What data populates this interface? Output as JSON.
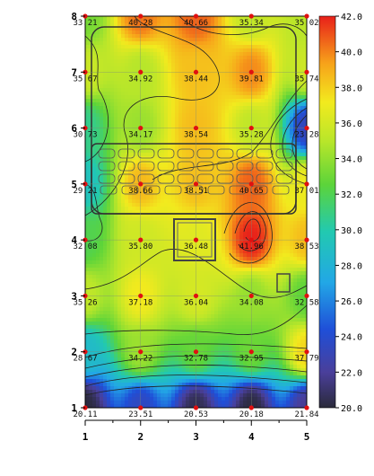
{
  "chart_data": {
    "type": "heatmap",
    "x_ticks": [
      "1",
      "2",
      "3",
      "4",
      "5"
    ],
    "y_ticks": [
      "1",
      "2",
      "3",
      "4",
      "5",
      "6",
      "7",
      "8"
    ],
    "xlim": [
      1,
      5
    ],
    "ylim": [
      1,
      8
    ],
    "colorbar": {
      "min": 20.0,
      "max": 42.0,
      "ticks": [
        "42.0",
        "40.0",
        "38.0",
        "36.0",
        "34.0",
        "32.0",
        "30.0",
        "28.0",
        "26.0",
        "24.0",
        "22.0",
        "20.0"
      ]
    },
    "points": [
      {
        "x": 1,
        "y": 8,
        "value": "33.21"
      },
      {
        "x": 2,
        "y": 8,
        "value": "40.28"
      },
      {
        "x": 3,
        "y": 8,
        "value": "40.66"
      },
      {
        "x": 4,
        "y": 8,
        "value": "35.34"
      },
      {
        "x": 5,
        "y": 8,
        "value": "35.02"
      },
      {
        "x": 1,
        "y": 7,
        "value": "35.67"
      },
      {
        "x": 2,
        "y": 7,
        "value": "34.92"
      },
      {
        "x": 3,
        "y": 7,
        "value": "38.44"
      },
      {
        "x": 4,
        "y": 7,
        "value": "39.81"
      },
      {
        "x": 5,
        "y": 7,
        "value": "35.74"
      },
      {
        "x": 1,
        "y": 6,
        "value": "30.73"
      },
      {
        "x": 2,
        "y": 6,
        "value": "34.17"
      },
      {
        "x": 3,
        "y": 6,
        "value": "38.54"
      },
      {
        "x": 4,
        "y": 6,
        "value": "35.28"
      },
      {
        "x": 5,
        "y": 6,
        "value": "23.28"
      },
      {
        "x": 1,
        "y": 5,
        "value": "29.21"
      },
      {
        "x": 2,
        "y": 5,
        "value": "38.66"
      },
      {
        "x": 3,
        "y": 5,
        "value": "38.51"
      },
      {
        "x": 4,
        "y": 5,
        "value": "40.65"
      },
      {
        "x": 5,
        "y": 5,
        "value": "37.01"
      },
      {
        "x": 1,
        "y": 4,
        "value": "32.08"
      },
      {
        "x": 2,
        "y": 4,
        "value": "35.80"
      },
      {
        "x": 3,
        "y": 4,
        "value": "36.48"
      },
      {
        "x": 4,
        "y": 4,
        "value": "41.96"
      },
      {
        "x": 5,
        "y": 4,
        "value": "38.53"
      },
      {
        "x": 1,
        "y": 3,
        "value": "35.26"
      },
      {
        "x": 2,
        "y": 3,
        "value": "37.18"
      },
      {
        "x": 3,
        "y": 3,
        "value": "36.04"
      },
      {
        "x": 4,
        "y": 3,
        "value": "34.08"
      },
      {
        "x": 5,
        "y": 3,
        "value": "32.58"
      },
      {
        "x": 1,
        "y": 2,
        "value": "28.67"
      },
      {
        "x": 2,
        "y": 2,
        "value": "34.22"
      },
      {
        "x": 3,
        "y": 2,
        "value": "32.78"
      },
      {
        "x": 4,
        "y": 2,
        "value": "32.95"
      },
      {
        "x": 5,
        "y": 2,
        "value": "37.79"
      },
      {
        "x": 1,
        "y": 1,
        "value": "20.11"
      },
      {
        "x": 2,
        "y": 1,
        "value": "23.51"
      },
      {
        "x": 3,
        "y": 1,
        "value": "20.53"
      },
      {
        "x": 4,
        "y": 1,
        "value": "20.18"
      },
      {
        "x": 5,
        "y": 1,
        "value": "21.84"
      }
    ]
  }
}
